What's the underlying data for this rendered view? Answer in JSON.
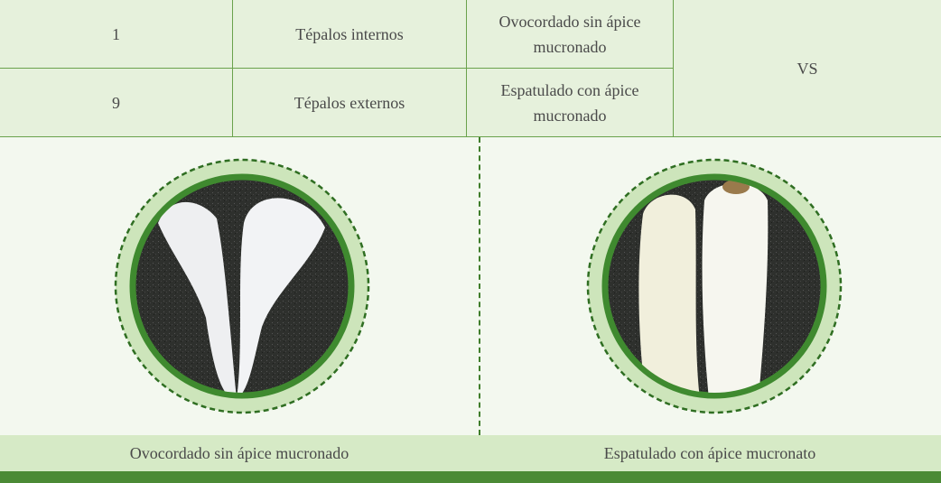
{
  "table": {
    "rows": [
      [
        "1",
        "Tépalos internos",
        "Ovocordado sin ápice mucronado"
      ],
      [
        "9",
        "Tépalos externos",
        "Espatulado con ápice mucronado"
      ]
    ],
    "merged": "VS"
  },
  "figures": {
    "captions": [
      "Ovocordado sin ápice mucronado",
      "Espatulado con ápice mucronato"
    ]
  }
}
